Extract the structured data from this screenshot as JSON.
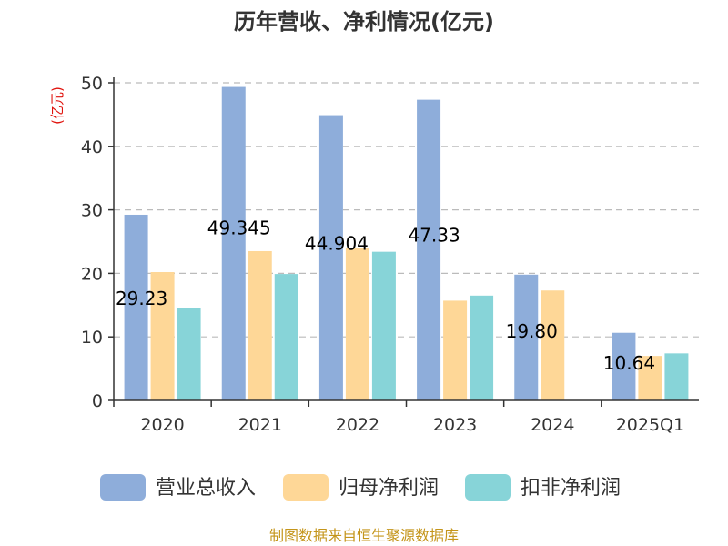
{
  "chart_data": {
    "type": "bar",
    "title": "历年营收、净利情况(亿元)",
    "ylabel": "(亿元)",
    "xlabel": "",
    "categories": [
      "2020",
      "2021",
      "2022",
      "2023",
      "2024",
      "2025Q1"
    ],
    "ylim": [
      0,
      50
    ],
    "yticks": [
      0,
      10,
      20,
      30,
      40,
      50
    ],
    "grid": true,
    "legend_position": "bottom",
    "series": [
      {
        "name": "营业总收入",
        "color": "#8eadda",
        "values": [
          29.23,
          49.345,
          44.904,
          47.33,
          19.8,
          10.64
        ]
      },
      {
        "name": "归母净利润",
        "color": "#fed797",
        "values": [
          20.2,
          23.5,
          24.0,
          15.7,
          17.3,
          7.0
        ]
      },
      {
        "name": "扣非净利润",
        "color": "#87d4d8",
        "values": [
          14.6,
          19.9,
          23.4,
          16.5,
          null,
          7.4
        ]
      }
    ],
    "data_labels": [
      "29.23",
      "49.345",
      "44.904",
      "47.33",
      "19.80",
      "10.64"
    ]
  },
  "source": "制图数据来自恒生聚源数据库"
}
